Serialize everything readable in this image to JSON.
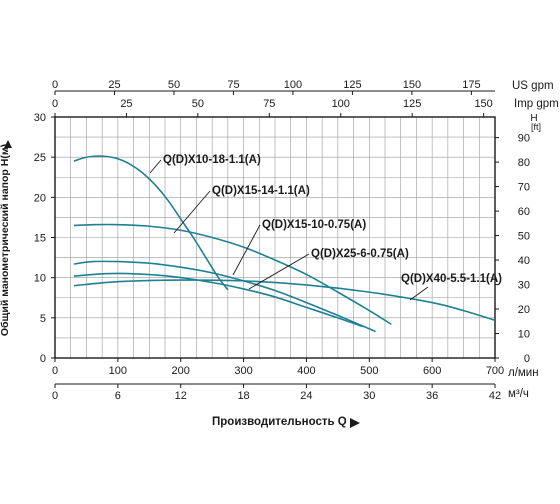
{
  "chart_data": {
    "type": "line",
    "title": "",
    "xlabel": "Производительность Q",
    "ylabel": "Общий манометрический напор H(м)",
    "grid": true,
    "x_axis_lpm": {
      "unit": "л/мин",
      "range": [
        0,
        700
      ],
      "ticks": [
        0,
        100,
        200,
        300,
        400,
        500,
        600,
        700
      ]
    },
    "x_axis_m3h": {
      "unit": "м³/ч",
      "range": [
        0,
        42
      ],
      "ticks": [
        0,
        6,
        12,
        18,
        24,
        30,
        36,
        42
      ]
    },
    "x_axis_us_gpm": {
      "unit": "US gpm",
      "range": [
        0,
        185
      ],
      "ticks": [
        0,
        25,
        50,
        75,
        100,
        125,
        150,
        175
      ]
    },
    "x_axis_imp_gpm": {
      "unit": "Imp gpm",
      "range": [
        0,
        154
      ],
      "ticks": [
        0,
        25,
        50,
        75,
        100,
        125,
        150
      ]
    },
    "y_axis_m": {
      "unit": "",
      "range": [
        0,
        30
      ],
      "ticks": [
        0,
        5,
        10,
        15,
        20,
        25,
        30
      ]
    },
    "y_axis_ft": {
      "unit": "H\n[ft]",
      "range": [
        0,
        98.4
      ],
      "ticks": [
        0,
        10,
        20,
        30,
        40,
        50,
        60,
        70,
        80,
        90
      ]
    },
    "series": [
      {
        "name": "Q(D)X10-18-1.1(A)",
        "x": [
          30,
          45,
          60,
          80,
          100,
          120,
          140,
          160,
          180,
          200,
          220,
          240,
          260,
          275
        ],
        "y": [
          24.5,
          24.9,
          25.1,
          25.1,
          24.8,
          24.1,
          23.0,
          21.5,
          19.6,
          17.3,
          15.0,
          12.5,
          10.0,
          8.5
        ]
      },
      {
        "name": "Q(D)X15-14-1.1(A)",
        "x": [
          30,
          60,
          100,
          150,
          200,
          250,
          300,
          350,
          400,
          450,
          500,
          535
        ],
        "y": [
          16.5,
          16.6,
          16.6,
          16.4,
          15.9,
          15.0,
          13.8,
          12.2,
          10.4,
          8.2,
          5.9,
          4.2
        ]
      },
      {
        "name": "Q(D)X15-10-0.75(A)",
        "x": [
          30,
          60,
          100,
          150,
          200,
          250,
          300,
          350,
          400,
          450,
          510
        ],
        "y": [
          11.7,
          12.0,
          12.0,
          11.8,
          11.3,
          10.6,
          9.6,
          8.4,
          6.9,
          5.3,
          3.3
        ]
      },
      {
        "name": "Q(D)X25-6-0.75(A)",
        "x": [
          30,
          80,
          120,
          180,
          250,
          300,
          350,
          400,
          450,
          490
        ],
        "y": [
          10.2,
          10.5,
          10.5,
          10.2,
          9.4,
          8.6,
          7.6,
          6.3,
          5.0,
          3.9
        ]
      },
      {
        "name": "Q(D)X40-5.5-1.1(A)",
        "x": [
          30,
          100,
          200,
          300,
          400,
          500,
          600,
          650,
          700
        ],
        "y": [
          9.0,
          9.5,
          9.7,
          9.6,
          9.1,
          8.2,
          6.9,
          5.9,
          4.7
        ]
      }
    ]
  },
  "colors": {
    "curve": "#1f8094",
    "grid": "#9a9a9a",
    "axis": "#1a1a1a"
  }
}
